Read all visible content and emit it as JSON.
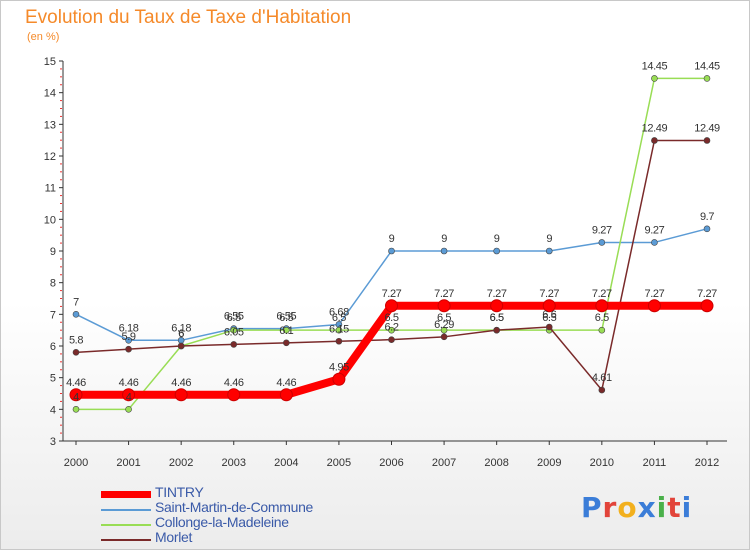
{
  "title": "Evolution du Taux de Taxe d'Habitation",
  "subtitle": "(en %)",
  "logo": "Proxiti",
  "chart_data": {
    "type": "line",
    "x": [
      "2000",
      "2001",
      "2002",
      "2003",
      "2004",
      "2005",
      "2006",
      "2007",
      "2008",
      "2009",
      "2010",
      "2011",
      "2012"
    ],
    "ylim": [
      3,
      15
    ],
    "yticks": [
      3,
      4,
      5,
      6,
      7,
      8,
      9,
      10,
      11,
      12,
      13,
      14,
      15
    ],
    "grid": false,
    "legend_position": "bottom-left",
    "series": [
      {
        "name": "TINTRY",
        "color": "#ff0000",
        "line_width": 8,
        "values": [
          4.46,
          4.46,
          4.46,
          4.46,
          4.46,
          4.95,
          7.27,
          7.27,
          7.27,
          7.27,
          7.27,
          7.27,
          7.27
        ],
        "labels": [
          "4.46",
          "4.46",
          "4.46",
          "4.46",
          "4.46",
          "4.95",
          "7.27",
          "7.27",
          "7.27",
          "7.27",
          "7.27",
          "7.27",
          "7.27"
        ]
      },
      {
        "name": "Saint-Martin-de-Commune",
        "color": "#5b9bd5",
        "line_width": 1.5,
        "values": [
          7,
          6.18,
          6.18,
          6.55,
          6.55,
          6.68,
          9,
          9,
          9,
          9,
          9.27,
          9.27,
          9.7
        ],
        "labels": [
          "7",
          "6.18",
          "6.18",
          "6.55",
          "6.55",
          "6.68",
          "9",
          "9",
          "9",
          "9",
          "9.27",
          "9.27",
          "9.7"
        ]
      },
      {
        "name": "Collonge-la-Madeleine",
        "color": "#99dd55",
        "line_width": 1.5,
        "values": [
          4,
          4,
          6,
          6.5,
          6.5,
          6.5,
          6.5,
          6.5,
          6.5,
          6.5,
          6.5,
          14.45,
          14.45
        ],
        "labels": [
          "4",
          "4",
          "6",
          "6.5",
          "6.5",
          "6.5",
          "6.5",
          "6.5",
          "6.5",
          "6.5",
          "6.5",
          "14.45",
          "14.45"
        ]
      },
      {
        "name": "Morlet",
        "color": "#7a2a2a",
        "line_width": 1.5,
        "values": [
          5.8,
          5.9,
          6,
          6.05,
          6.1,
          6.15,
          6.2,
          6.29,
          6.5,
          6.6,
          4.61,
          12.49,
          12.49
        ],
        "labels": [
          "5.8",
          "5.9",
          "6",
          "6.05",
          "6.1",
          "6.15",
          "6.2",
          "6.29",
          "6.5",
          "6.6",
          "4.61",
          "12.49",
          "12.49"
        ]
      }
    ]
  }
}
